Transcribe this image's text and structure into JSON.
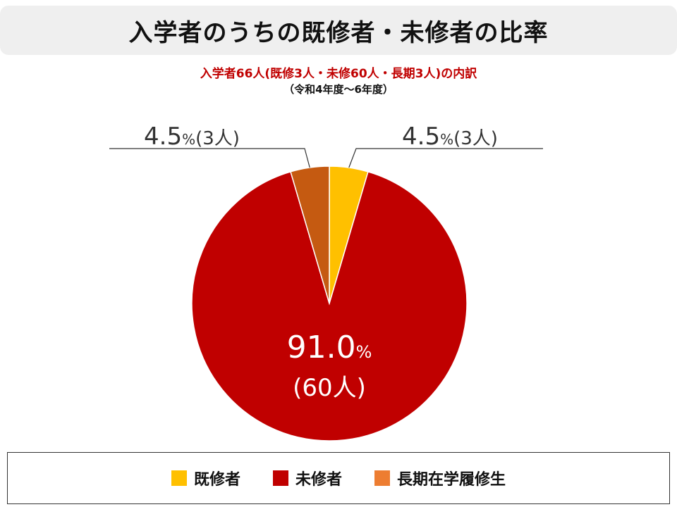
{
  "title": "入学者のうちの既修者・未修者の比率",
  "subtitle": "入学者66人(既修3人・未修60人・長期3人)の内訳",
  "period": "（令和4年度～6年度）",
  "chart_data": {
    "type": "pie",
    "title": "入学者のうちの既修者・未修者の比率",
    "subtitle": "入学者66人(既修3人・未修60人・長期3人)の内訳",
    "legend_position": "bottom",
    "slices": [
      {
        "name": "既修者",
        "value": 3,
        "percent": "4.5",
        "count_label": "3人",
        "color": "#ffc000"
      },
      {
        "name": "未修者",
        "value": 60,
        "percent": "91.0",
        "count_label": "60人",
        "color": "#c00000"
      },
      {
        "name": "長期在学履修生",
        "value": 3,
        "percent": "4.5",
        "count_label": "3人",
        "color": "#c55a11"
      }
    ]
  },
  "legend": [
    {
      "label": "既修者",
      "color": "#ffc000"
    },
    {
      "label": "未修者",
      "color": "#c00000"
    },
    {
      "label": "長期在学履修生",
      "color": "#ed7d31"
    }
  ]
}
